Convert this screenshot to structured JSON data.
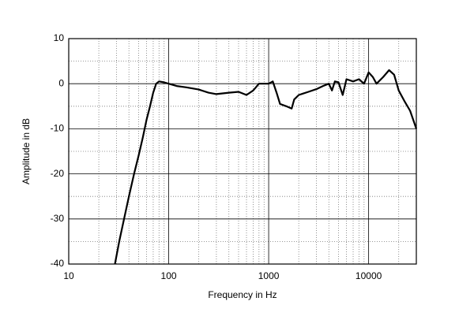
{
  "chart_data": {
    "type": "line",
    "xlabel": "Frequency in Hz",
    "ylabel": "Amplitude in dB",
    "xscale": "log",
    "grid": true,
    "color": "#000000",
    "xlim": [
      10,
      30000
    ],
    "ylim": [
      -40,
      10
    ],
    "xticks": [
      10,
      100,
      1000,
      10000
    ],
    "yticks": [
      -40,
      -30,
      -20,
      -10,
      0,
      10
    ],
    "xminor": [
      20,
      30,
      40,
      50,
      60,
      70,
      80,
      90,
      200,
      300,
      400,
      500,
      600,
      700,
      800,
      900,
      2000,
      3000,
      4000,
      5000,
      6000,
      7000,
      8000,
      9000,
      20000
    ],
    "yminor": [
      -35,
      -25,
      -15,
      -5,
      5
    ],
    "x": [
      29,
      32,
      35,
      40,
      45,
      50,
      55,
      60,
      65,
      70,
      75,
      80,
      90,
      100,
      120,
      150,
      200,
      250,
      300,
      400,
      500,
      600,
      700,
      800,
      1000,
      1100,
      1200,
      1300,
      1500,
      1700,
      1800,
      2000,
      2500,
      3000,
      3500,
      4000,
      4300,
      4600,
      5000,
      5500,
      6000,
      7000,
      8000,
      9000,
      10000,
      11000,
      12000,
      14000,
      16000,
      18000,
      20000,
      23000,
      26000,
      30000
    ],
    "values": [
      -40,
      -35,
      -31,
      -25,
      -20,
      -16,
      -12,
      -8,
      -5,
      -2,
      0,
      0.5,
      0.3,
      0,
      -0.5,
      -0.8,
      -1.3,
      -2,
      -2.3,
      -2,
      -1.8,
      -2.5,
      -1.5,
      0,
      0,
      0.5,
      -2,
      -4.5,
      -5,
      -5.5,
      -3.5,
      -2.5,
      -1.8,
      -1.2,
      -0.5,
      0,
      -1.5,
      0.5,
      0.3,
      -2.5,
      1,
      0.5,
      1,
      0,
      2.5,
      1.5,
      0,
      1.5,
      3,
      2,
      -1.5,
      -4,
      -6,
      -10
    ]
  }
}
